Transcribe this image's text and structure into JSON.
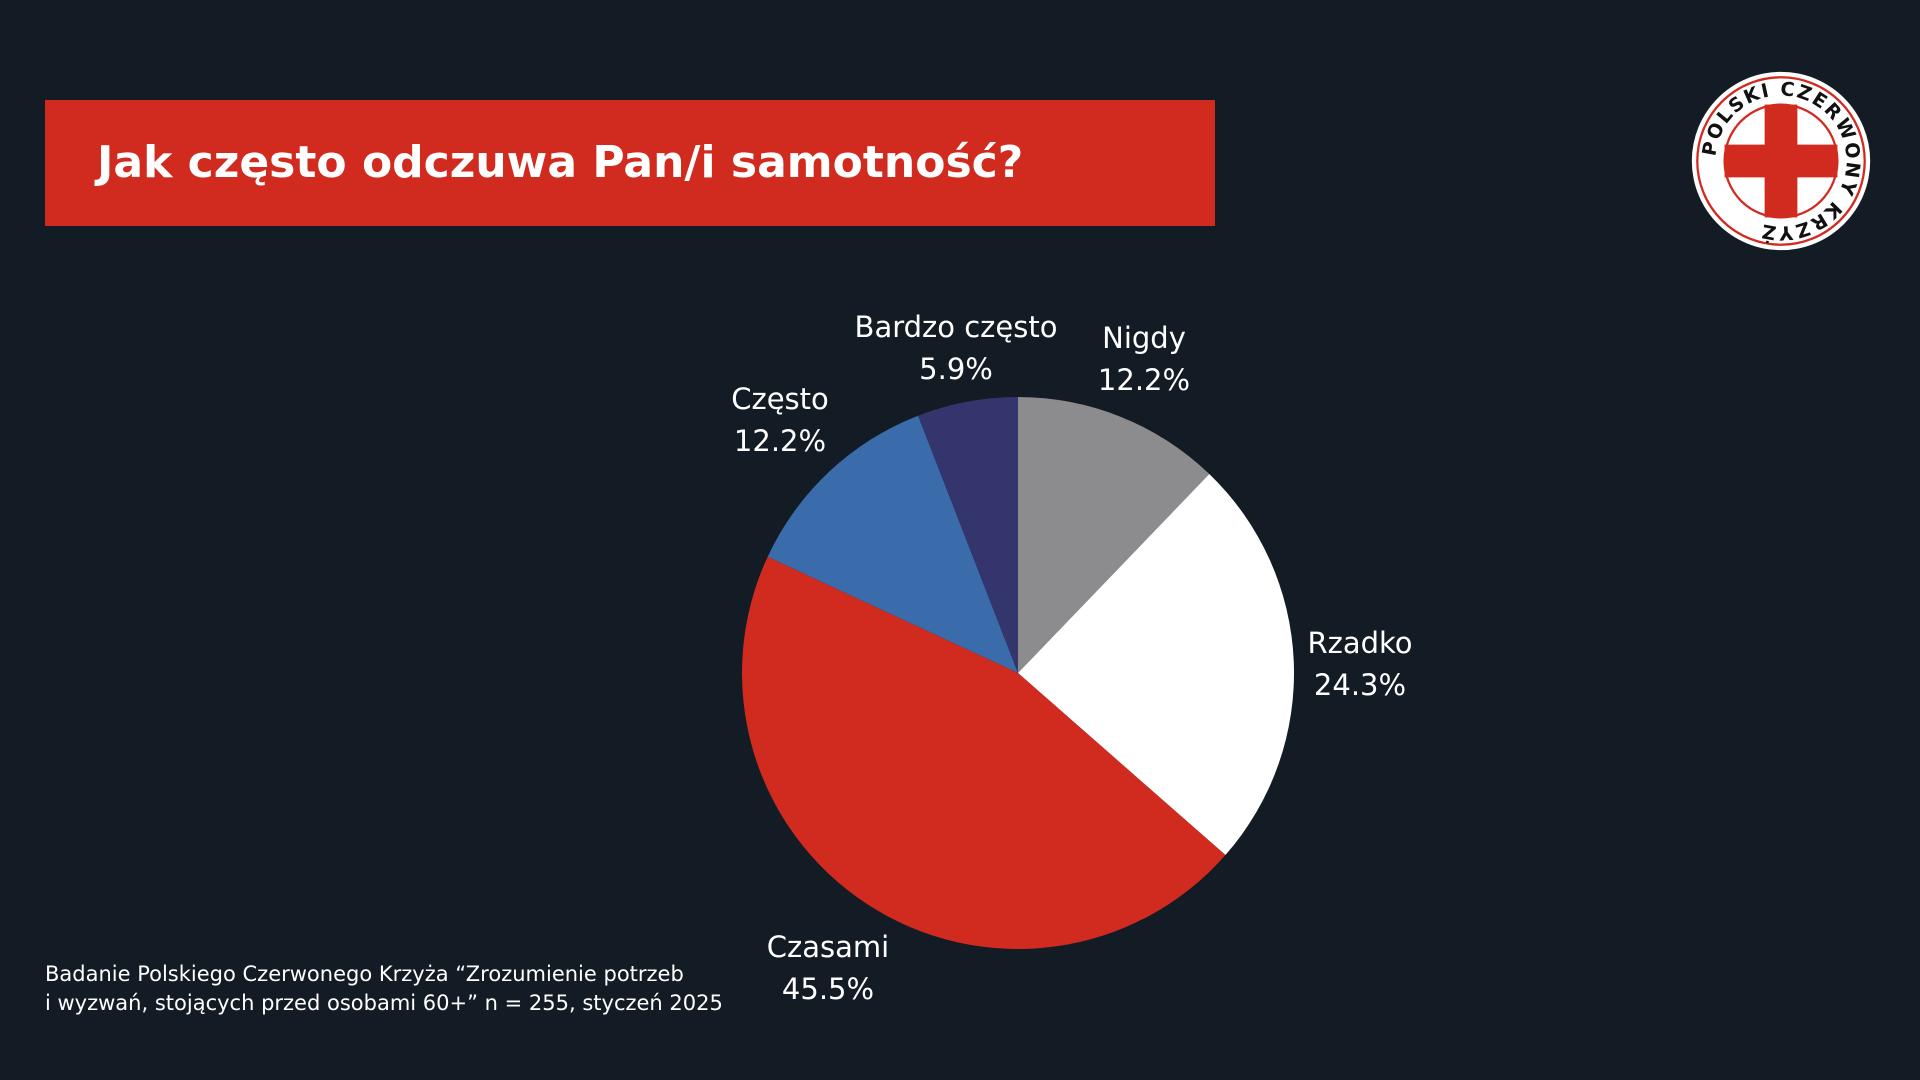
{
  "title": "Jak często odczuwa Pan/i samotność?",
  "logo_text": "POLSKI CZERWONY KRZYŻ",
  "footnote": {
    "line1": "Badanie Polskiego Czerwonego Krzyża “Zrozumienie potrzeb",
    "line2": "i wyzwań, stojących przed osobami 60+” n = 255, styczeń 2025"
  },
  "colors": {
    "background": "#131c25",
    "accent": "#d12a1f"
  },
  "chart_data": {
    "type": "pie",
    "start": "top",
    "direction": "clockwise",
    "slices": [
      {
        "label": "Nigdy",
        "value": 12.2,
        "display": "12.2%",
        "color": "#8c8c8e"
      },
      {
        "label": "Rzadko",
        "value": 24.3,
        "display": "24.3%",
        "color": "#ffffff"
      },
      {
        "label": "Czasami",
        "value": 45.5,
        "display": "45.5%",
        "color": "#d12a1f"
      },
      {
        "label": "Często",
        "value": 12.2,
        "display": "12.2%",
        "color": "#3a6bab"
      },
      {
        "label": "Bardzo często",
        "value": 5.9,
        "display": "5.9%",
        "color": "#35356e"
      }
    ]
  }
}
